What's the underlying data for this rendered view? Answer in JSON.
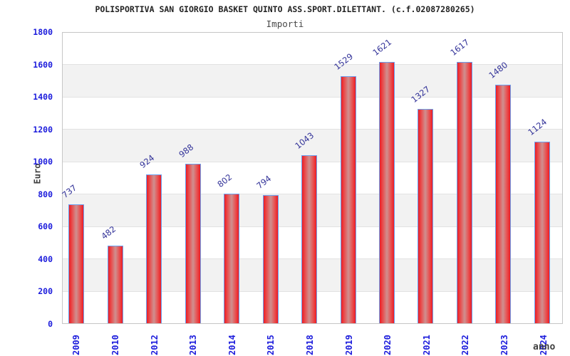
{
  "chart_data": {
    "type": "bar",
    "title": "POLISPORTIVA SAN GIORGIO BASKET QUINTO ASS.SPORT.DILETTANT. (c.f.02087280265)",
    "subtitle": "Importi",
    "xlabel": "anno",
    "ylabel": "Euro",
    "categories": [
      "2009",
      "2010",
      "2012",
      "2013",
      "2014",
      "2015",
      "2018",
      "2019",
      "2020",
      "2021",
      "2022",
      "2023",
      "2024"
    ],
    "values": [
      737,
      482,
      924,
      988,
      802,
      794,
      1043,
      1529,
      1621,
      1327,
      1617,
      1480,
      1124
    ],
    "ylim": [
      0,
      1800
    ],
    "yticks": [
      0,
      200,
      400,
      600,
      800,
      1000,
      1200,
      1400,
      1600,
      1800
    ],
    "grid": "horizontal-alternating-bands",
    "legend": "none",
    "bar_value_labels": "rotated above bars",
    "colors": {
      "bar_edge_red": "#ec1c24",
      "bar_center_red": "#cf9090",
      "bar_border_blue": "#6ba1f0",
      "band_gray": "#f2f2f2",
      "tick_blue": "#1c1cdc",
      "value_blue": "#333399"
    }
  }
}
